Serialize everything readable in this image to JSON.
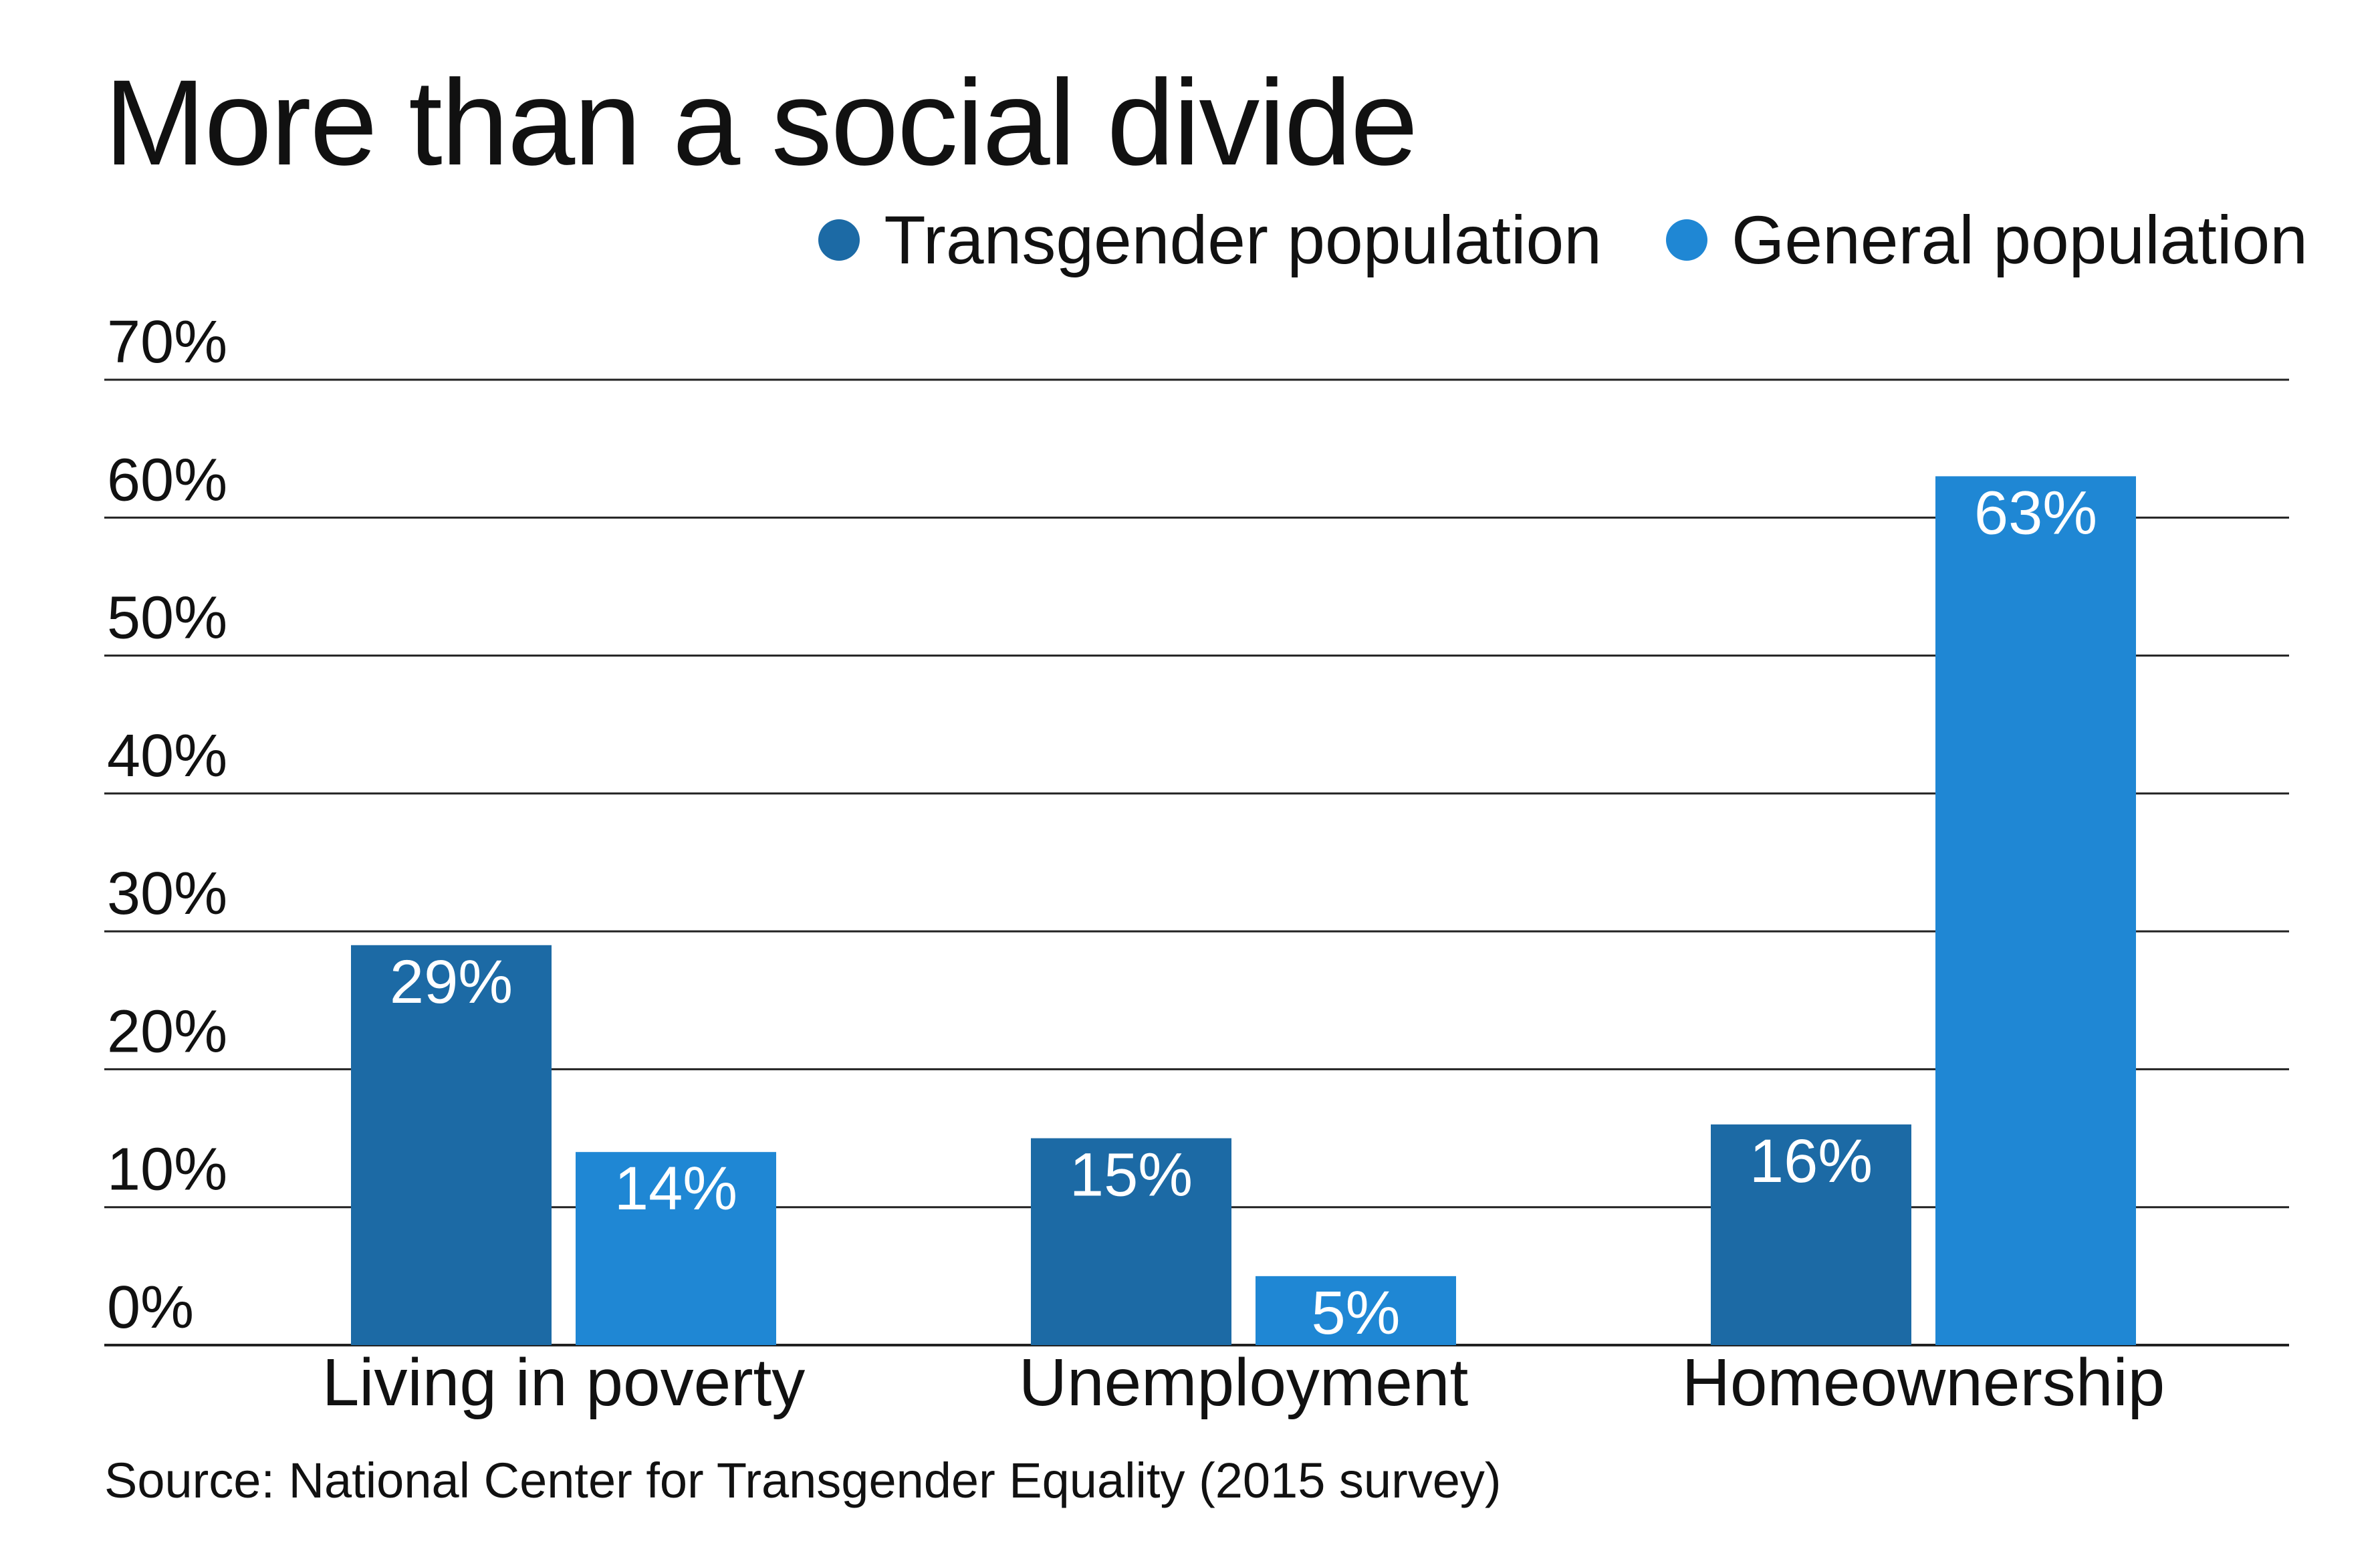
{
  "chart_data": {
    "type": "bar",
    "title": "More than a social divide",
    "categories": [
      "Living in poverty",
      "Unemployment",
      "Homeownership"
    ],
    "series": [
      {
        "name": "Transgender population",
        "values": [
          29,
          15,
          16
        ],
        "labels": [
          "29%",
          "15%",
          "16%"
        ],
        "color": "#1c6aa5"
      },
      {
        "name": "General population",
        "values": [
          14,
          5,
          63
        ],
        "labels": [
          "14%",
          "5%",
          "63%"
        ],
        "color": "#1f87d4"
      }
    ],
    "yticks": [
      0,
      10,
      20,
      30,
      40,
      50,
      60,
      70
    ],
    "ytick_labels": [
      "0%",
      "10%",
      "20%",
      "30%",
      "40%",
      "50%",
      "60%",
      "70%"
    ],
    "ylim": [
      0,
      70
    ],
    "grid": true,
    "legend_position": "top-right",
    "source": "Source: National Center for Transgender Equality (2015 survey)"
  }
}
